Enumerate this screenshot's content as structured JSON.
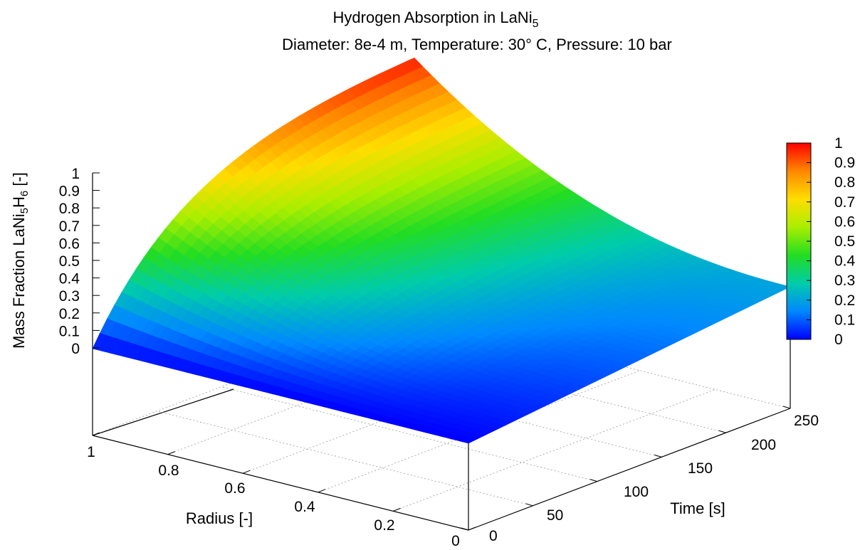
{
  "chart_data": {
    "type": "surface3d",
    "title": "Hydrogen Absorption in LaNi",
    "title_subscript": "5",
    "subtitle": "Diameter: 8e-4 m, Temperature: 30° C, Pressure: 10 bar",
    "xlabel": "Radius [-]",
    "ylabel": "Time [s]",
    "zlabel": {
      "parts": [
        {
          "text": "Mass Fraction LaNi",
          "sub": false
        },
        {
          "text": "5",
          "sub": true
        },
        {
          "text": "H",
          "sub": false
        },
        {
          "text": "6",
          "sub": true
        },
        {
          "text": " [-]",
          "sub": false
        }
      ]
    },
    "x_ticks": [
      "1",
      "0.8",
      "0.6",
      "0.4",
      "0.2",
      "0"
    ],
    "y_ticks": [
      "0",
      "50",
      "100",
      "150",
      "200",
      "250"
    ],
    "z_ticks": [
      "0",
      "0.1",
      "0.2",
      "0.3",
      "0.4",
      "0.5",
      "0.6",
      "0.7",
      "0.8",
      "0.9",
      "1"
    ],
    "colorbar_ticks": [
      "0",
      "0.1",
      "0.2",
      "0.3",
      "0.4",
      "0.5",
      "0.6",
      "0.7",
      "0.8",
      "0.9",
      "1"
    ],
    "xlim": [
      0,
      1
    ],
    "ylim": [
      0,
      250
    ],
    "zlim": [
      0,
      1
    ],
    "colormap": [
      "#0000ff",
      "#0088ff",
      "#00ccaa",
      "#22dd22",
      "#aaee00",
      "#ffdd00",
      "#ff8800",
      "#ff0000"
    ],
    "edge_values": {
      "radius_1_vs_time": {
        "x": [
          0,
          25,
          50,
          75,
          100,
          125,
          150,
          175,
          200,
          225,
          250
        ],
        "z": [
          0,
          0.3,
          0.45,
          0.58,
          0.68,
          0.76,
          0.83,
          0.88,
          0.92,
          0.95,
          0.97
        ]
      },
      "time_250_vs_radius": {
        "x": [
          1,
          0.8,
          0.6,
          0.4,
          0.2,
          0
        ],
        "z": [
          0.97,
          0.9,
          0.6,
          0.4,
          0.28,
          0.2
        ]
      },
      "radius_0_vs_time": {
        "x": [
          0,
          250
        ],
        "z": [
          0,
          0.2
        ]
      }
    },
    "grid": true,
    "legend": "colorbar-right"
  }
}
